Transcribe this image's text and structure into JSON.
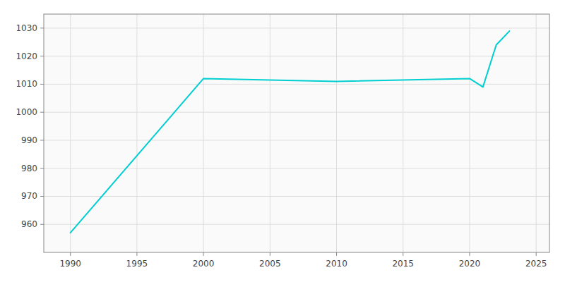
{
  "chart_data": {
    "type": "line",
    "x": [
      1990,
      2000,
      2010,
      2020,
      2021,
      2022,
      2023
    ],
    "values": [
      957,
      1012,
      1011,
      1012,
      1009,
      1024,
      1029
    ],
    "color": "#00CED1",
    "xlim": [
      1988,
      2026
    ],
    "ylim": [
      950,
      1035
    ],
    "xticks": [
      1990,
      1995,
      2000,
      2005,
      2010,
      2015,
      2020,
      2025
    ],
    "yticks": [
      960,
      970,
      980,
      990,
      1000,
      1010,
      1020,
      1030
    ],
    "grid": true
  }
}
